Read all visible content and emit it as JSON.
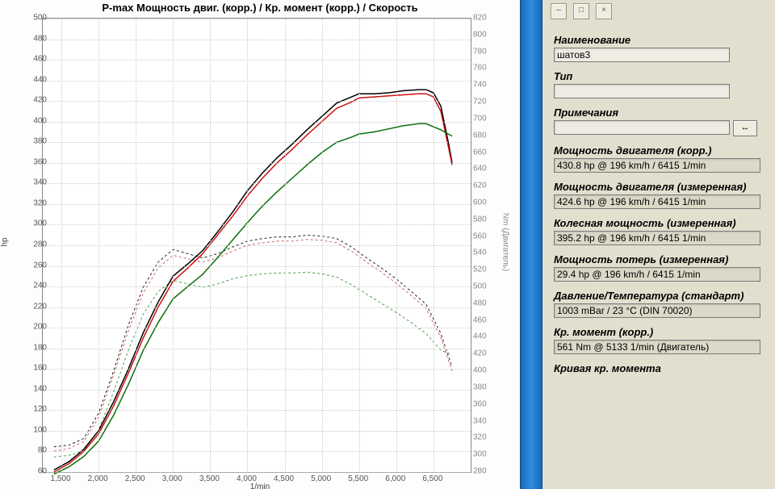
{
  "chart": {
    "title": "P-max Мощность двиг. (корр.) / Кр. момент (корр.) / Скорость",
    "y_left": {
      "label": "hp",
      "min": 60,
      "max": 500,
      "step": 20,
      "color": "#555555"
    },
    "y_right": {
      "label": "Nm (Двигатель)",
      "min": 280,
      "max": 820,
      "step": 20,
      "color": "#888888"
    },
    "x": {
      "label": "1/min",
      "min": 1250,
      "max": 7000,
      "ticks": [
        1500,
        2000,
        2500,
        3000,
        3500,
        4000,
        4500,
        5000,
        5500,
        6000,
        6500
      ],
      "tick_labels": [
        "1,500",
        "2,000",
        "2,500",
        "3,000",
        "3,500",
        "4,000",
        "4,500",
        "5,000",
        "5,500",
        "6,000",
        "6,500"
      ]
    },
    "grid_color": "#cccccc",
    "series_power": [
      {
        "name": "power-corr-black",
        "color": "#000000",
        "width": 1.5,
        "dash": "",
        "axis": "left",
        "points": [
          [
            1400,
            62
          ],
          [
            1600,
            70
          ],
          [
            1800,
            82
          ],
          [
            2000,
            100
          ],
          [
            2200,
            128
          ],
          [
            2400,
            160
          ],
          [
            2600,
            195
          ],
          [
            2800,
            225
          ],
          [
            3000,
            250
          ],
          [
            3200,
            262
          ],
          [
            3400,
            275
          ],
          [
            3600,
            293
          ],
          [
            3800,
            312
          ],
          [
            4000,
            333
          ],
          [
            4200,
            350
          ],
          [
            4400,
            365
          ],
          [
            4600,
            378
          ],
          [
            4800,
            392
          ],
          [
            5000,
            405
          ],
          [
            5200,
            418
          ],
          [
            5400,
            424
          ],
          [
            5500,
            427
          ],
          [
            5700,
            427
          ],
          [
            5900,
            428
          ],
          [
            6100,
            430
          ],
          [
            6300,
            431
          ],
          [
            6400,
            431
          ],
          [
            6500,
            428
          ],
          [
            6600,
            415
          ],
          [
            6700,
            380
          ],
          [
            6750,
            360
          ]
        ]
      },
      {
        "name": "power-corr-red",
        "color": "#cc1111",
        "width": 1.5,
        "dash": "",
        "axis": "left",
        "points": [
          [
            1400,
            60
          ],
          [
            1600,
            68
          ],
          [
            1800,
            80
          ],
          [
            2000,
            97
          ],
          [
            2200,
            124
          ],
          [
            2400,
            156
          ],
          [
            2600,
            190
          ],
          [
            2800,
            220
          ],
          [
            3000,
            245
          ],
          [
            3200,
            258
          ],
          [
            3400,
            272
          ],
          [
            3600,
            290
          ],
          [
            3800,
            308
          ],
          [
            4000,
            328
          ],
          [
            4200,
            345
          ],
          [
            4400,
            360
          ],
          [
            4600,
            373
          ],
          [
            4800,
            387
          ],
          [
            5000,
            400
          ],
          [
            5200,
            413
          ],
          [
            5400,
            419
          ],
          [
            5500,
            423
          ],
          [
            5700,
            424
          ],
          [
            5900,
            425
          ],
          [
            6100,
            426
          ],
          [
            6300,
            427
          ],
          [
            6400,
            427
          ],
          [
            6500,
            424
          ],
          [
            6600,
            410
          ],
          [
            6700,
            376
          ],
          [
            6750,
            358
          ]
        ]
      },
      {
        "name": "power-wheel-green",
        "color": "#0b6e0b",
        "width": 1.5,
        "dash": "",
        "axis": "left",
        "points": [
          [
            1400,
            58
          ],
          [
            1600,
            65
          ],
          [
            1800,
            75
          ],
          [
            2000,
            90
          ],
          [
            2200,
            115
          ],
          [
            2400,
            145
          ],
          [
            2600,
            178
          ],
          [
            2800,
            205
          ],
          [
            3000,
            228
          ],
          [
            3200,
            240
          ],
          [
            3400,
            252
          ],
          [
            3600,
            268
          ],
          [
            3800,
            285
          ],
          [
            4000,
            302
          ],
          [
            4200,
            318
          ],
          [
            4400,
            332
          ],
          [
            4600,
            345
          ],
          [
            4800,
            358
          ],
          [
            5000,
            370
          ],
          [
            5200,
            380
          ],
          [
            5400,
            385
          ],
          [
            5500,
            388
          ],
          [
            5700,
            390
          ],
          [
            5900,
            393
          ],
          [
            6100,
            396
          ],
          [
            6300,
            398
          ],
          [
            6400,
            398
          ],
          [
            6500,
            395
          ],
          [
            6600,
            392
          ],
          [
            6700,
            388
          ],
          [
            6750,
            386
          ]
        ]
      }
    ],
    "series_torque": [
      {
        "name": "torque-corr-black",
        "color": "#222222",
        "width": 1,
        "dash": "3,3",
        "axis": "right",
        "points": [
          [
            1400,
            310
          ],
          [
            1600,
            312
          ],
          [
            1800,
            320
          ],
          [
            2000,
            350
          ],
          [
            2200,
            400
          ],
          [
            2400,
            455
          ],
          [
            2600,
            500
          ],
          [
            2800,
            530
          ],
          [
            3000,
            545
          ],
          [
            3200,
            540
          ],
          [
            3400,
            535
          ],
          [
            3600,
            540
          ],
          [
            3800,
            548
          ],
          [
            4000,
            555
          ],
          [
            4200,
            558
          ],
          [
            4400,
            560
          ],
          [
            4600,
            560
          ],
          [
            4800,
            562
          ],
          [
            5000,
            561
          ],
          [
            5200,
            558
          ],
          [
            5400,
            548
          ],
          [
            5600,
            535
          ],
          [
            5800,
            523
          ],
          [
            6000,
            510
          ],
          [
            6200,
            495
          ],
          [
            6400,
            480
          ],
          [
            6600,
            445
          ],
          [
            6750,
            405
          ]
        ]
      },
      {
        "name": "torque-corr-red",
        "color": "#cc6666",
        "width": 1,
        "dash": "3,3",
        "axis": "right",
        "points": [
          [
            1400,
            305
          ],
          [
            1600,
            308
          ],
          [
            1800,
            316
          ],
          [
            2000,
            345
          ],
          [
            2200,
            395
          ],
          [
            2400,
            448
          ],
          [
            2600,
            493
          ],
          [
            2800,
            523
          ],
          [
            3000,
            538
          ],
          [
            3200,
            534
          ],
          [
            3400,
            530
          ],
          [
            3600,
            535
          ],
          [
            3800,
            543
          ],
          [
            4000,
            550
          ],
          [
            4200,
            553
          ],
          [
            4400,
            555
          ],
          [
            4600,
            555
          ],
          [
            4800,
            557
          ],
          [
            5000,
            556
          ],
          [
            5200,
            553
          ],
          [
            5400,
            543
          ],
          [
            5600,
            530
          ],
          [
            5800,
            518
          ],
          [
            6000,
            505
          ],
          [
            6200,
            490
          ],
          [
            6400,
            475
          ],
          [
            6600,
            440
          ],
          [
            6750,
            400
          ]
        ]
      },
      {
        "name": "torque-wheel-green",
        "color": "#4a9c4a",
        "width": 1,
        "dash": "3,3",
        "axis": "right",
        "points": [
          [
            1400,
            298
          ],
          [
            1600,
            300
          ],
          [
            1800,
            305
          ],
          [
            2000,
            330
          ],
          [
            2200,
            375
          ],
          [
            2400,
            425
          ],
          [
            2600,
            468
          ],
          [
            2800,
            495
          ],
          [
            3000,
            508
          ],
          [
            3200,
            504
          ],
          [
            3400,
            500
          ],
          [
            3600,
            504
          ],
          [
            3800,
            510
          ],
          [
            4000,
            514
          ],
          [
            4200,
            516
          ],
          [
            4400,
            517
          ],
          [
            4600,
            517
          ],
          [
            4800,
            518
          ],
          [
            5000,
            516
          ],
          [
            5200,
            512
          ],
          [
            5400,
            503
          ],
          [
            5600,
            492
          ],
          [
            5800,
            481
          ],
          [
            6000,
            470
          ],
          [
            6200,
            458
          ],
          [
            6400,
            445
          ],
          [
            6600,
            425
          ],
          [
            6750,
            420
          ]
        ]
      }
    ]
  },
  "form": {
    "toolbar_icons": [
      "–",
      "□",
      "×"
    ],
    "name_label": "Наименование",
    "name_value": "шатов3",
    "type_label": "Тип",
    "type_value": "",
    "remarks_label": "Примечания",
    "remarks_value": "",
    "expand_label": "↔",
    "engine_power_corr_label": "Мощность двигателя (корр.)",
    "engine_power_corr_value": "430.8 hp @ 196 km/h / 6415 1/min",
    "engine_power_meas_label": "Мощность двигателя (измеренная)",
    "engine_power_meas_value": "424.6 hp @ 196 km/h / 6415 1/min",
    "wheel_power_label": "Колесная мощность (измеренная)",
    "wheel_power_value": "395.2 hp @ 196 km/h / 6415 1/min",
    "loss_power_label": "Мощность потерь (измеренная)",
    "loss_power_value": "29.4 hp @ 196 km/h / 6415 1/min",
    "pressure_temp_label": "Давление/Температура (стандарт)",
    "pressure_temp_value": "1003 mBar / 23 °C (DIN 70020)",
    "torque_corr_label": "Кр. момент (корр.)",
    "torque_corr_value": "561 Nm @ 5133 1/min (Двигатель)",
    "torque_curve_label": "Кривая кр. момента"
  }
}
